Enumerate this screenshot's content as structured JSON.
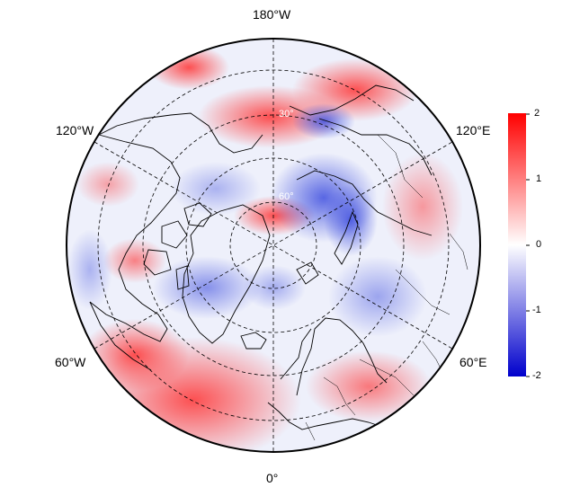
{
  "map": {
    "projection": "north-polar-stereographic",
    "longitude_labels": {
      "top": "180°W",
      "upper_left": "120°W",
      "upper_right": "120°E",
      "lower_left": "60°W",
      "lower_right": "60°E",
      "bottom": "0°"
    },
    "latitude_labels": [
      "30°",
      "60°"
    ],
    "graticule": "dashed"
  },
  "colorbar": {
    "ticks": [
      "2",
      "1",
      "0",
      "-1",
      "-2"
    ],
    "colors": {
      "max": "#ff0000",
      "mid": "#ffffff",
      "min": "#0000cc"
    }
  }
}
